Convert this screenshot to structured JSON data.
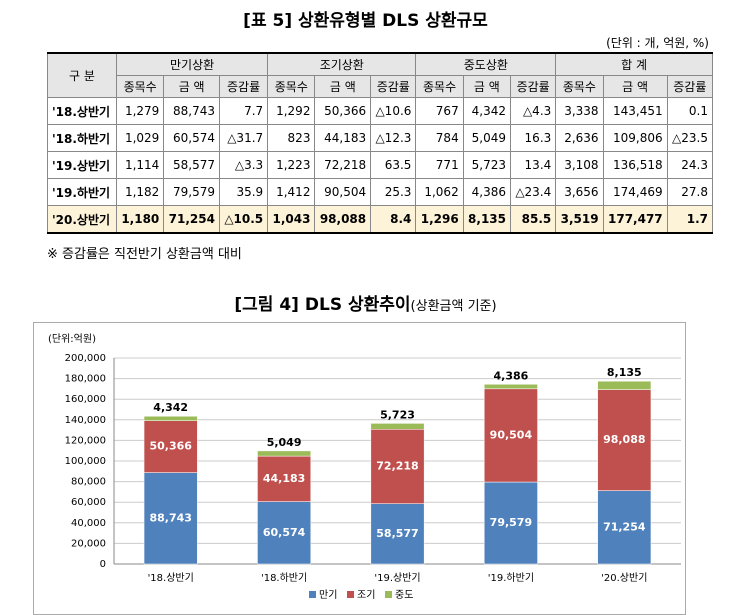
{
  "table_title": "[표 5] 상환유형별 DLS 상환규모",
  "unit": "(단위 : 개, 억원, %)",
  "table": {
    "header": [
      [
        "구 분",
        "만기상환",
        "조기상환",
        "중도상환",
        "합 계"
      ],
      [
        "종목수",
        "금 액",
        "증감률",
        "종목수",
        "금 액",
        "증감률",
        "종목수",
        "금 액",
        "증감률",
        "종목수",
        "금 액",
        "증감률"
      ]
    ],
    "rows": [
      [
        "'18.상반기",
        "1,279",
        "88,743",
        "7.7",
        "1,292",
        "50,366",
        "△10.6",
        "767",
        "4,342",
        "△4.3",
        "3,338",
        "143,451",
        "0.1"
      ],
      [
        "'18.하반기",
        "1,029",
        "60,574",
        "△31.7",
        "823",
        "44,183",
        "△12.3",
        "784",
        "5,049",
        "16.3",
        "2,636",
        "109,806",
        "△23.5"
      ],
      [
        "'19.상반기",
        "1,114",
        "58,577",
        "△3.3",
        "1,223",
        "72,218",
        "63.5",
        "771",
        "5,723",
        "13.4",
        "3,108",
        "136,518",
        "24.3"
      ],
      [
        "'19.하반기",
        "1,182",
        "79,579",
        "35.9",
        "1,412",
        "90,504",
        "25.3",
        "1,062",
        "4,386",
        "△23.4",
        "3,656",
        "174,469",
        "27.8"
      ],
      [
        "'20.상반기",
        "1,180",
        "71,254",
        "△10.5",
        "1,043",
        "98,088",
        "8.4",
        "1,296",
        "8,135",
        "85.5",
        "3,519",
        "177,477",
        "1.7"
      ]
    ]
  },
  "note": "※ 증감률은 직전반기 상환금액 대비",
  "figure_title": "[그림 4] DLS 상환추이",
  "figure_subtitle": "(상환금액 기준)",
  "chart_data": {
    "type": "stacked_bar",
    "y_label": "(단위:억원)",
    "categories": [
      "'18.상반기",
      "'18.하반기",
      "'19.상반기",
      "'19.하반기",
      "'20.상반기"
    ],
    "series": [
      {
        "name": "만기",
        "color": "#4f81bd",
        "values": [
          88743,
          60574,
          58577,
          79579,
          71254
        ],
        "value_labels": [
          "88,743",
          "60,574",
          "58,577",
          "79,579",
          "71,254"
        ]
      },
      {
        "name": "조기",
        "color": "#c0504d",
        "values": [
          50366,
          44183,
          72218,
          90504,
          98088
        ],
        "value_labels": [
          "50,366",
          "44,183",
          "72,218",
          "90,504",
          "98,088"
        ]
      },
      {
        "name": "중도",
        "color": "#9bbb59",
        "values": [
          4342,
          5049,
          5723,
          4386,
          8135
        ],
        "value_labels": [
          "4,342",
          "5,049",
          "5,723",
          "4,386",
          "8,135"
        ]
      }
    ],
    "ylim": [
      0,
      200000
    ],
    "yticks": [
      0,
      {
        "value": 20000,
        "label": "20,000"
      },
      {
        "value": 40000,
        "label": "40,000"
      },
      {
        "value": 60000,
        "label": "60,000"
      },
      {
        "value": 80000,
        "label": "80,000"
      },
      {
        "value": 100000,
        "label": "100,000"
      },
      {
        "value": 120000,
        "label": "120,000"
      },
      {
        "value": 140000,
        "label": "140,000"
      },
      {
        "value": 160000,
        "label": "160,000"
      },
      {
        "value": 180000,
        "label": "180,000"
      },
      {
        "value": 200000,
        "label": "200,000"
      }
    ],
    "grid": true,
    "legend": "bottom"
  }
}
